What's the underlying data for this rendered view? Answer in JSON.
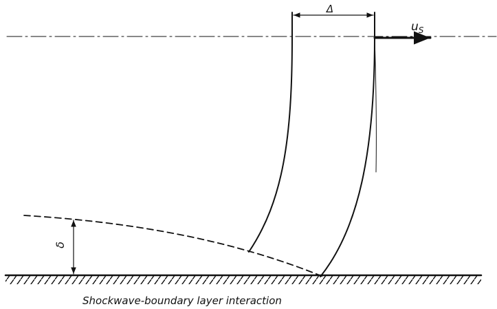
{
  "labels": {
    "gap": "Δ",
    "velocity": "u",
    "velocity_subscript": "S",
    "thickness": "δ"
  },
  "caption": "Shockwave-boundary layer interaction"
}
